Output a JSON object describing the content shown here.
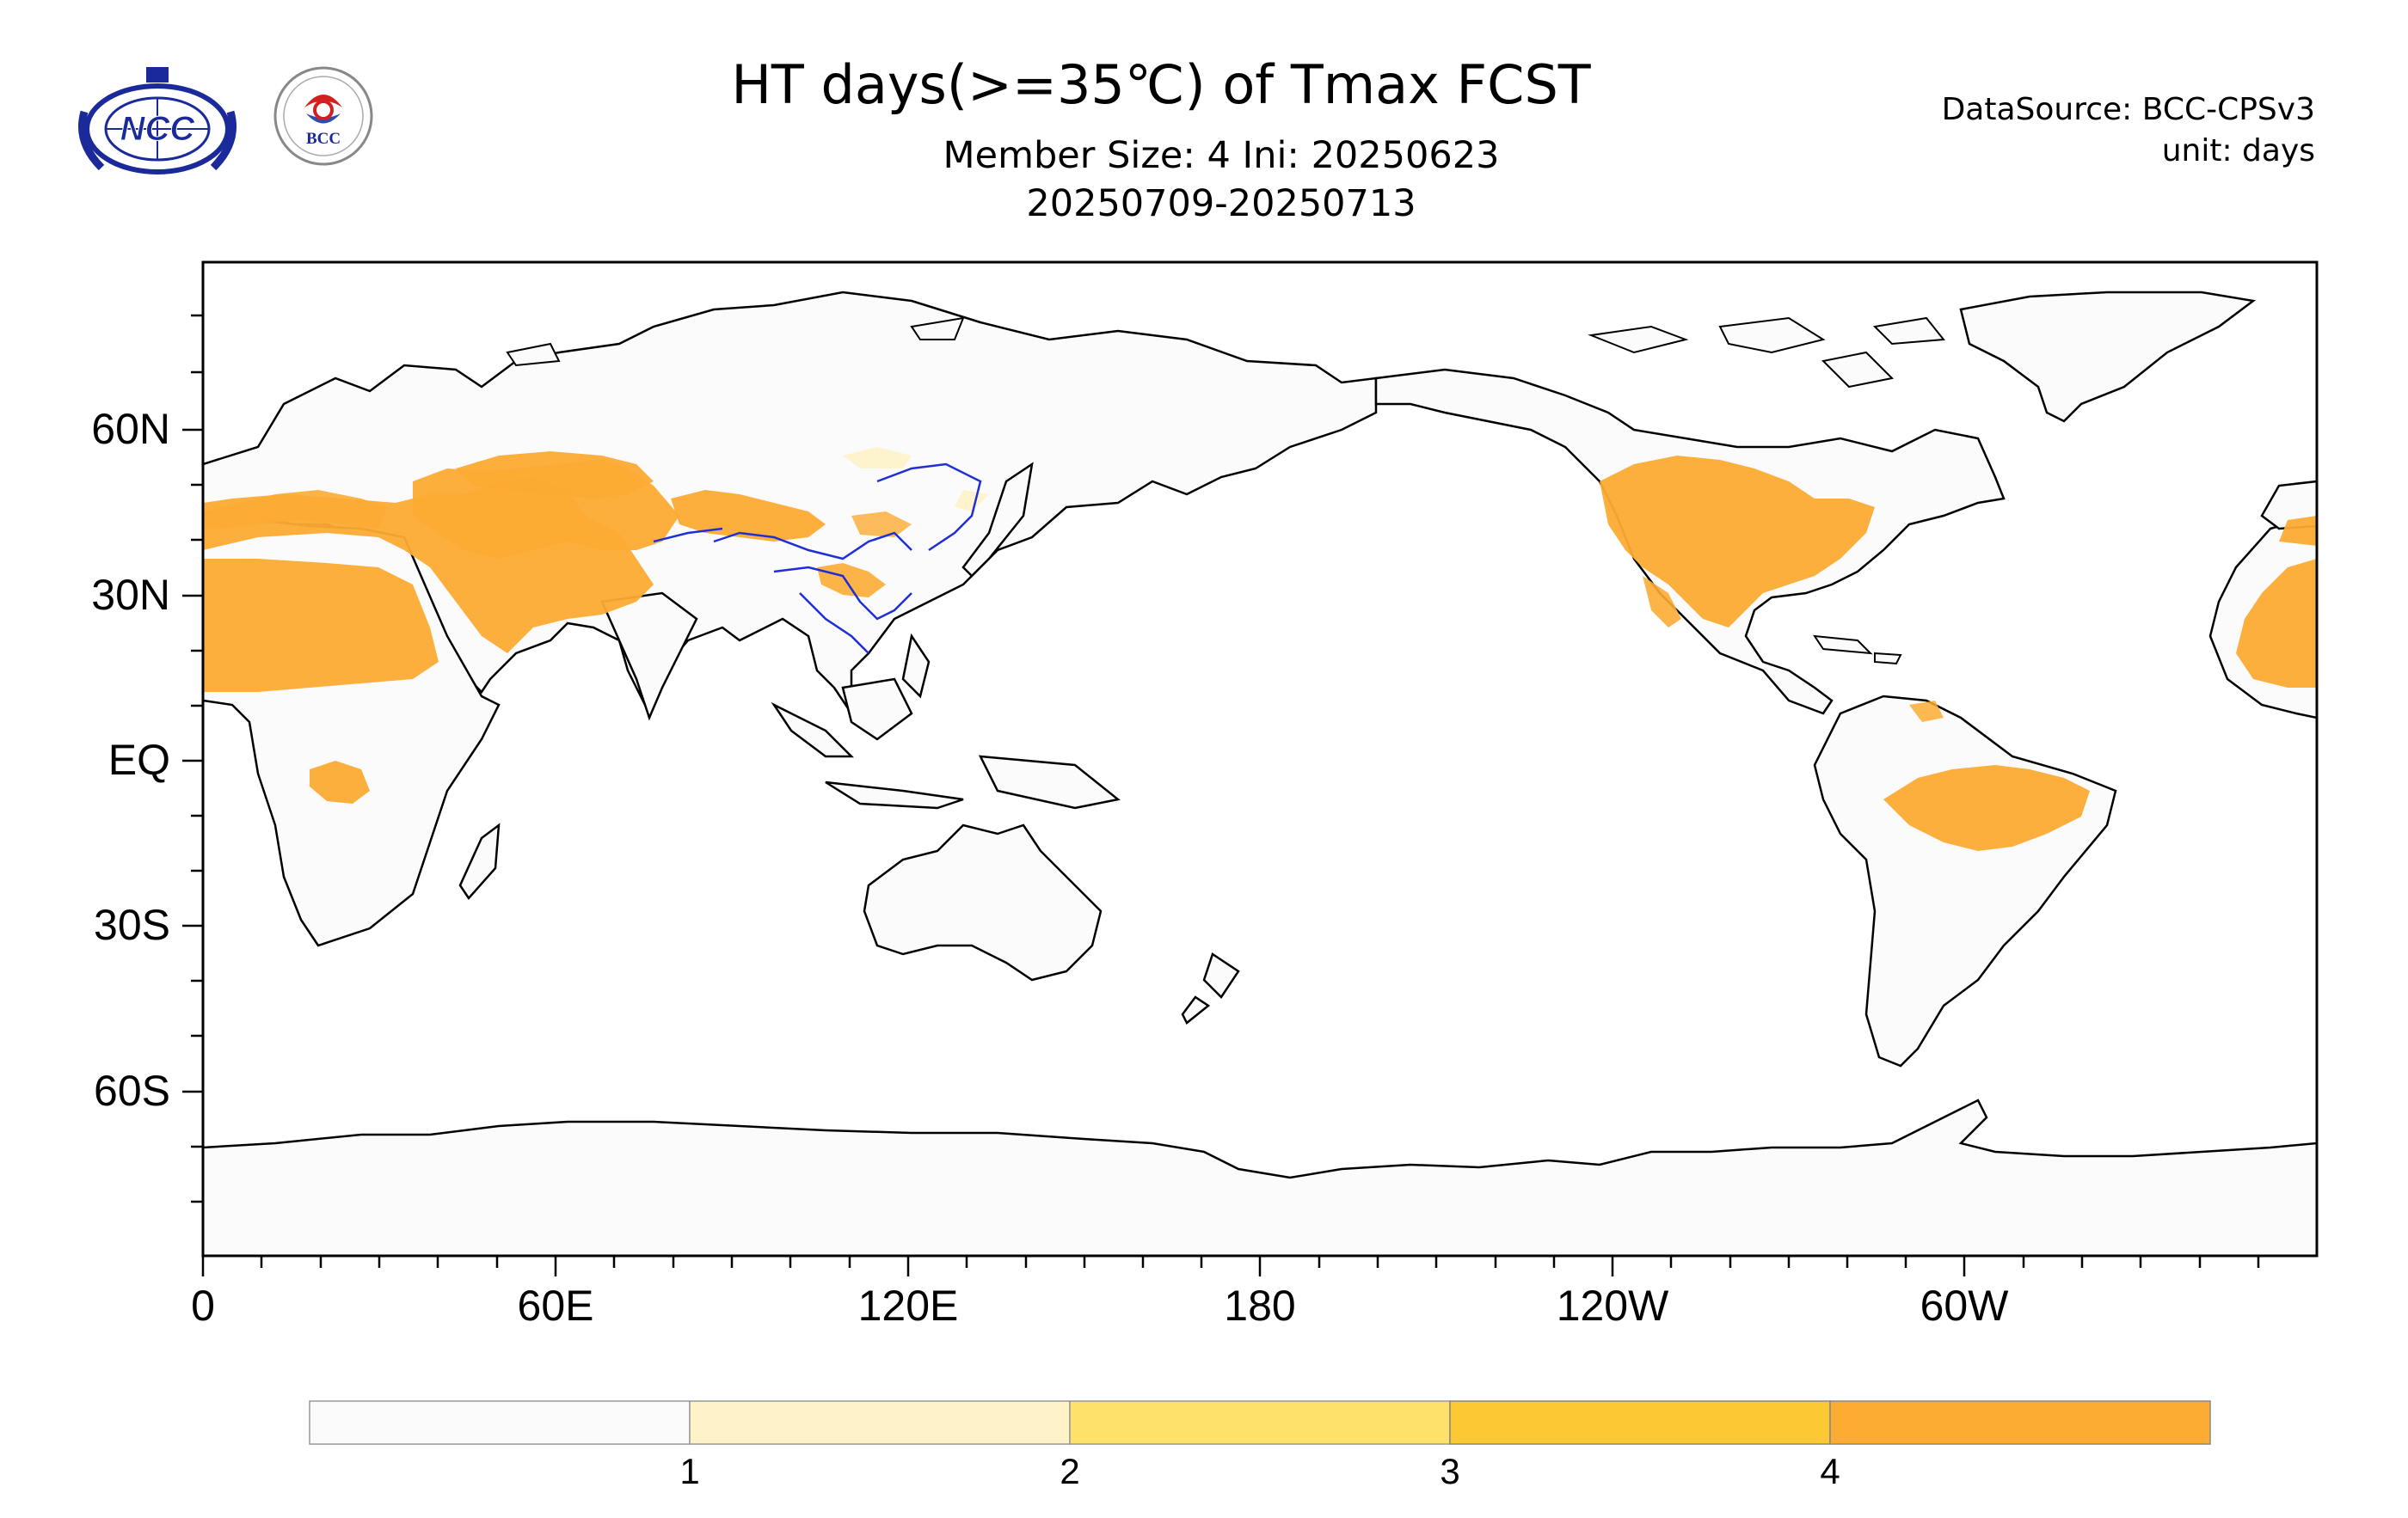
{
  "header": {
    "title": "HT days(>=35℃) of Tmax FCST",
    "subtitle_line1": "Member Size: 4  Ini: 20250623",
    "subtitle_line2": "20250709-20250713",
    "datasource": "DataSource: BCC-CPSv3",
    "unit": "unit: days"
  },
  "logos": {
    "ncc_text": "NCC",
    "bcc_text": "BCC"
  },
  "map": {
    "lat_labels": [
      "60N",
      "30N",
      "EQ",
      "30S",
      "60S"
    ],
    "lon_labels": [
      "0",
      "60E",
      "120E",
      "180",
      "120W",
      "60W"
    ],
    "land_color": "#fbfbfb",
    "colors": [
      "#fbfbfb",
      "#fdf2c8",
      "#fde16a",
      "#fcc833",
      "#fcab33"
    ]
  },
  "colorbar": {
    "labels": [
      "1",
      "2",
      "3",
      "4"
    ]
  }
}
